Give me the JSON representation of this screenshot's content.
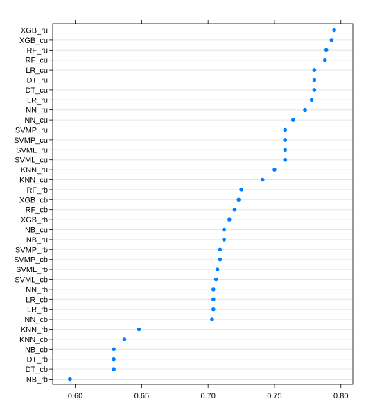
{
  "chart_data": {
    "type": "scatter",
    "title": "",
    "xlabel": "",
    "ylabel": "",
    "xlim": [
      0.583,
      0.809
    ],
    "xticks": [
      0.6,
      0.65,
      0.7,
      0.75,
      0.8
    ],
    "xtick_labels": [
      "0.60",
      "0.65",
      "0.70",
      "0.75",
      "0.80"
    ],
    "grid": true,
    "point_color": "#0080ff",
    "categories": [
      "XGB_ru",
      "XGB_cu",
      "RF_ru",
      "RF_cu",
      "LR_cu",
      "DT_ru",
      "DT_cu",
      "LR_ru",
      "NN_ru",
      "NN_cu",
      "SVMP_ru",
      "SVMP_cu",
      "SVML_ru",
      "SVML_cu",
      "KNN_ru",
      "KNN_cu",
      "RF_rb",
      "XGB_cb",
      "RF_cb",
      "XGB_rb",
      "NB_cu",
      "NB_ru",
      "SVMP_rb",
      "SVMP_cb",
      "SVML_rb",
      "SVML_cb",
      "NN_rb",
      "LR_cb",
      "LR_rb",
      "NN_cb",
      "KNN_rb",
      "KNN_cb",
      "NB_cb",
      "DT_rb",
      "DT_cb",
      "NB_rb"
    ],
    "values": [
      0.795,
      0.793,
      0.789,
      0.788,
      0.78,
      0.78,
      0.78,
      0.778,
      0.773,
      0.764,
      0.758,
      0.758,
      0.758,
      0.758,
      0.75,
      0.741,
      0.725,
      0.723,
      0.72,
      0.716,
      0.712,
      0.712,
      0.709,
      0.709,
      0.707,
      0.706,
      0.704,
      0.704,
      0.704,
      0.703,
      0.648,
      0.637,
      0.629,
      0.629,
      0.629,
      0.596
    ]
  }
}
